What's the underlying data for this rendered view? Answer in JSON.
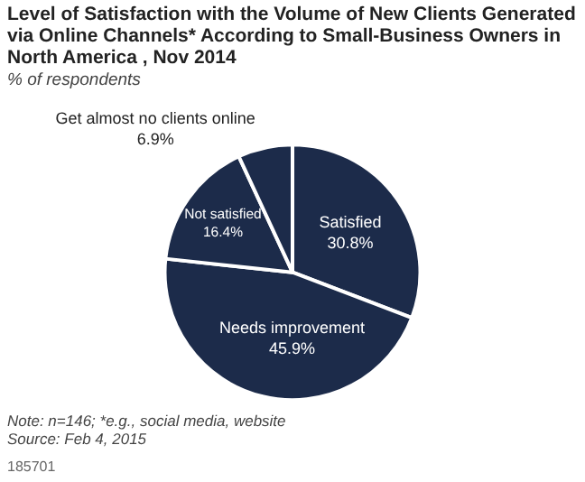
{
  "chart_data": {
    "type": "pie",
    "title": "Level of Satisfaction with the Volume of New Clients Generated via Online Channels* According to Small-Business Owners in North America , Nov 2014",
    "subtitle": "% of respondents",
    "categories": [
      "Satisfied",
      "Needs improvement",
      "Not satisfied",
      "Get almost no clients online"
    ],
    "values": [
      30.8,
      45.9,
      16.4,
      6.9
    ],
    "value_labels": [
      "30.8%",
      "45.9%",
      "16.4%",
      "6.9%"
    ],
    "colors": [
      "#1c2b4a",
      "#1c2b4a",
      "#1c2b4a",
      "#1c2b4a"
    ],
    "annotations": [
      "Note: n=146; *e.g., social media, website",
      "Source: Feb 4, 2015",
      "185701"
    ],
    "legend": false
  }
}
